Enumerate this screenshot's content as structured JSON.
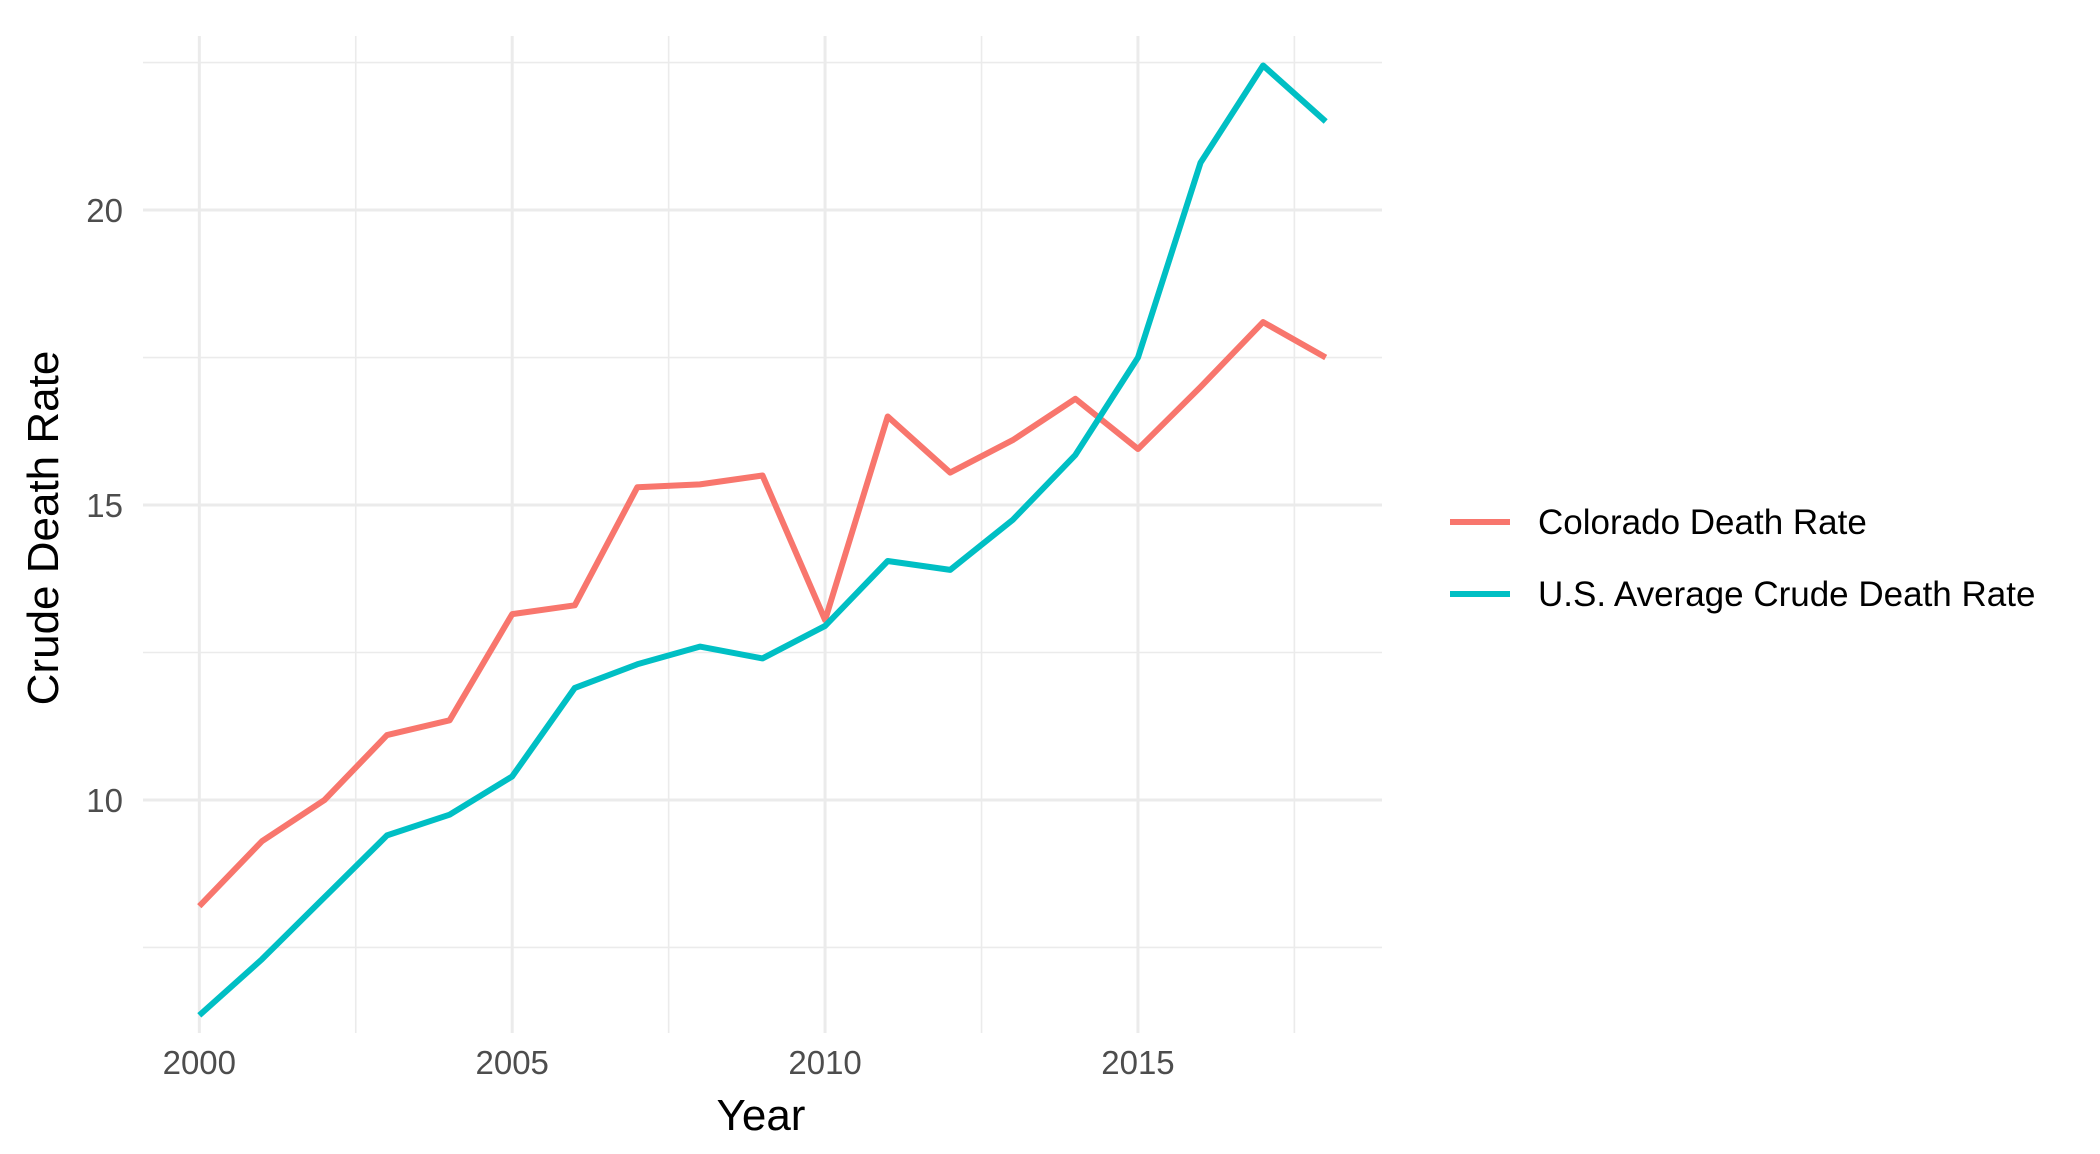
{
  "chart_data": {
    "type": "line",
    "title": "",
    "xlabel": "Year",
    "ylabel": "Crude Death Rate",
    "xlim": [
      1999.1,
      2018.9
    ],
    "ylim": [
      6.05,
      22.95
    ],
    "grid": true,
    "legend_position": "right",
    "x_ticks": [
      2000,
      2005,
      2010,
      2015
    ],
    "x_minor_ticks": [
      2002.5,
      2007.5,
      2012.5,
      2017.5
    ],
    "y_ticks": [
      10,
      15,
      20
    ],
    "y_minor_ticks": [
      7.5,
      12.5,
      17.5,
      22.5
    ],
    "x_tick_labels": [
      "2000",
      "2005",
      "2010",
      "2015"
    ],
    "y_tick_labels": [
      "10",
      "15",
      "20"
    ],
    "x": [
      2000,
      2001,
      2002,
      2003,
      2004,
      2005,
      2006,
      2007,
      2008,
      2009,
      2010,
      2011,
      2012,
      2013,
      2014,
      2015,
      2016,
      2017,
      2018
    ],
    "series": [
      {
        "name": "Colorado Death Rate",
        "color": "#F8766D",
        "values": [
          8.2,
          9.3,
          10.0,
          11.1,
          11.35,
          13.15,
          13.3,
          15.3,
          15.35,
          15.5,
          13.05,
          16.5,
          15.55,
          16.1,
          16.8,
          15.95,
          17.0,
          18.1,
          17.5
        ]
      },
      {
        "name": "U.S. Average Crude Death Rate",
        "color": "#00BFC4",
        "values": [
          6.35,
          7.3,
          8.35,
          9.4,
          9.75,
          10.4,
          11.9,
          12.3,
          12.6,
          12.4,
          12.95,
          14.05,
          13.9,
          14.75,
          15.85,
          17.5,
          20.8,
          22.45,
          21.5
        ]
      }
    ]
  }
}
